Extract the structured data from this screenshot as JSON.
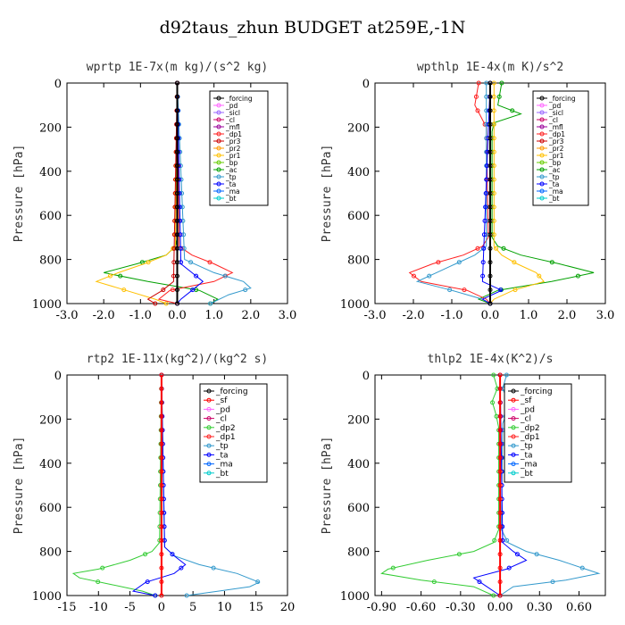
{
  "title": "d92taus_zhun  BUDGET at259E,-1N",
  "chart_data": [
    {
      "type": "line",
      "title": "wprtp  1E-7x(m kg)/(s^2 kg)",
      "ylabel": "Pressure [hPa]",
      "xlim": [
        -3.0,
        3.0
      ],
      "ylim": [
        1000,
        0
      ],
      "xticks": [
        "-3.0",
        "-2.0",
        "-1.0",
        "0.0",
        "1.0",
        "2.0",
        "3.0"
      ],
      "yticks": [
        "0",
        "200",
        "400",
        "600",
        "800",
        "1000"
      ],
      "legend": [
        "_forcing",
        "_pd",
        "_sicl",
        "_cl",
        "_mfl",
        "_dp1",
        "_pr3",
        "_pr2",
        "_pr1",
        "_bp",
        "_ac",
        "_tp",
        "_ta",
        "_ma",
        "_bt"
      ],
      "legend_position": "top-right",
      "series": [
        {
          "name": "_ac",
          "color": "#00a000",
          "y": [
            0,
            700,
            740,
            780,
            820,
            860,
            900,
            940,
            980,
            1000
          ],
          "x": [
            0,
            0,
            -0.05,
            -0.3,
            -1.1,
            -2.0,
            -0.8,
            0.6,
            1.1,
            0.9
          ]
        },
        {
          "name": "_pr1",
          "color": "#ffc000",
          "y": [
            0,
            740,
            780,
            820,
            860,
            900,
            940,
            980,
            1000
          ],
          "x": [
            0,
            -0.05,
            -0.3,
            -0.9,
            -1.6,
            -2.2,
            -1.4,
            -0.6,
            -0.3
          ]
        },
        {
          "name": "_dp1",
          "color": "#ff2020",
          "y": [
            0,
            740,
            780,
            820,
            860,
            900,
            940,
            980,
            1000
          ],
          "x": [
            0,
            0.05,
            0.4,
            1.0,
            1.5,
            1.0,
            -0.2,
            -0.5,
            0
          ]
        },
        {
          "name": "_bt",
          "color": "#3399cc",
          "y": [
            0,
            800,
            860,
            900,
            930,
            960,
            1000
          ],
          "x": [
            0,
            0.2,
            1.0,
            1.8,
            2.0,
            1.4,
            0.9
          ]
        },
        {
          "name": "_ta",
          "color": "#0000ff",
          "y": [
            0,
            820,
            860,
            900,
            940,
            980,
            1000
          ],
          "x": [
            0,
            0.1,
            0.4,
            0.7,
            0.4,
            0.1,
            0
          ]
        },
        {
          "name": "_pr3",
          "color": "#cc0000",
          "y": [
            0,
            900,
            940,
            980,
            1000
          ],
          "x": [
            0,
            -0.1,
            -0.4,
            -0.8,
            -0.6
          ]
        },
        {
          "name": "_forcing",
          "color": "#000000",
          "y": [
            0,
            1000
          ],
          "x": [
            0,
            0
          ]
        }
      ]
    },
    {
      "type": "line",
      "title": "wpthlp  1E-4x(m K)/s^2",
      "ylabel": "Pressure [hPa]",
      "xlim": [
        -3.0,
        3.0
      ],
      "ylim": [
        1000,
        0
      ],
      "xticks": [
        "-3.0",
        "-2.0",
        "-1.0",
        "0.0",
        "1.0",
        "2.0",
        "3.0"
      ],
      "yticks": [
        "0",
        "200",
        "400",
        "600",
        "800",
        "1000"
      ],
      "legend": [
        "_forcing",
        "_pd",
        "_sicl",
        "_cl",
        "_mfl",
        "_dp1",
        "_pr3",
        "_pr2",
        "_pr1",
        "_bp",
        "_ac",
        "_tp",
        "_ta",
        "_ma",
        "_bt"
      ],
      "legend_position": "top-right",
      "series": [
        {
          "name": "_ac",
          "color": "#00a000",
          "y": [
            0,
            100,
            140,
            180,
            220,
            700,
            740,
            780,
            820,
            860,
            900,
            940,
            980,
            1000
          ],
          "x": [
            0.3,
            0.2,
            0.8,
            0.1,
            0.05,
            0.05,
            0.2,
            0.8,
            1.8,
            2.7,
            1.6,
            0.2,
            -0.3,
            0
          ]
        },
        {
          "name": "_pr1",
          "color": "#ffc000",
          "y": [
            0,
            740,
            780,
            820,
            860,
            900,
            940,
            980,
            1000
          ],
          "x": [
            0.1,
            0.1,
            0.3,
            0.7,
            1.2,
            1.4,
            0.6,
            0.1,
            0
          ]
        },
        {
          "name": "_dp1",
          "color": "#ff2020",
          "y": [
            0,
            100,
            200,
            700,
            740,
            780,
            820,
            860,
            900,
            940,
            980,
            1000
          ],
          "x": [
            -0.3,
            -0.4,
            -0.1,
            -0.05,
            -0.2,
            -0.7,
            -1.5,
            -2.1,
            -1.8,
            -0.6,
            -0.1,
            0
          ]
        },
        {
          "name": "_bt",
          "color": "#3399cc",
          "y": [
            0,
            740,
            780,
            820,
            860,
            900,
            940,
            980,
            1000
          ],
          "x": [
            -0.1,
            -0.1,
            -0.4,
            -0.9,
            -1.4,
            -1.9,
            -1.0,
            -0.2,
            0
          ]
        },
        {
          "name": "_ta",
          "color": "#0000ff",
          "y": [
            0,
            900,
            940,
            980,
            1000
          ],
          "x": [
            0,
            -0.2,
            0.3,
            -0.2,
            0
          ]
        },
        {
          "name": "_forcing",
          "color": "#000000",
          "y": [
            0,
            1000
          ],
          "x": [
            0,
            0
          ]
        }
      ]
    },
    {
      "type": "line",
      "title": "rtp2  1E-11x(kg^2)/(kg^2 s)",
      "ylabel": "Pressure [hPa]",
      "xlim": [
        -15,
        20
      ],
      "ylim": [
        1000,
        0
      ],
      "xticks": [
        "-15",
        "-10",
        "-5",
        "0",
        "5",
        "10",
        "15",
        "20"
      ],
      "yticks": [
        "0",
        "200",
        "400",
        "600",
        "800",
        "1000"
      ],
      "legend": [
        "_forcing",
        "_sf",
        "_pd",
        "_cl",
        "_dp2",
        "_dp1",
        "_tp",
        "_ta",
        "_ma",
        "_bt"
      ],
      "legend_position": "top-right",
      "series": [
        {
          "name": "_dp1",
          "color": "#33cc33",
          "y": [
            0,
            760,
            800,
            840,
            880,
            900,
            920,
            950,
            980,
            1000
          ],
          "x": [
            0,
            -0.3,
            -1.5,
            -5.0,
            -10.0,
            -14.0,
            -13.0,
            -8.0,
            -3.0,
            -1.0
          ]
        },
        {
          "name": "_tp",
          "color": "#3399cc",
          "y": [
            0,
            780,
            820,
            860,
            900,
            940,
            960,
            980,
            1000
          ],
          "x": [
            0,
            0.5,
            2.0,
            6.0,
            12.0,
            15.5,
            14.0,
            9.0,
            4.0
          ]
        },
        {
          "name": "_ta",
          "color": "#0000ff",
          "y": [
            0,
            780,
            820,
            860,
            900,
            940,
            980,
            1000
          ],
          "x": [
            0,
            0.5,
            2.0,
            3.8,
            2.0,
            -2.5,
            -4.5,
            -1.0
          ]
        },
        {
          "name": "_forcing",
          "color": "#ff0000",
          "y": [
            0,
            1000
          ],
          "x": [
            0,
            0
          ]
        }
      ]
    },
    {
      "type": "line",
      "title": "thlp2  1E-4x(K^2)/s",
      "ylabel": "Pressure [hPa]",
      "xlim": [
        -0.95,
        0.8
      ],
      "ylim": [
        1000,
        0
      ],
      "xticks": [
        "-0.90",
        "-0.60",
        "-0.30",
        "0.00",
        "0.30",
        "0.60"
      ],
      "yticks": [
        "0",
        "200",
        "400",
        "600",
        "800",
        "1000"
      ],
      "legend": [
        "_forcing",
        "_sf",
        "_pd",
        "_cl",
        "_dp2",
        "_dp1",
        "_tp",
        "_ta",
        "_ma",
        "_bt"
      ],
      "legend_position": "top-right",
      "series": [
        {
          "name": "_dp1",
          "color": "#33cc33",
          "y": [
            0,
            60,
            120,
            180,
            240,
            700,
            760,
            800,
            840,
            880,
            900,
            930,
            960,
            1000
          ],
          "x": [
            -0.05,
            -0.02,
            -0.06,
            -0.03,
            -0.01,
            -0.01,
            -0.05,
            -0.2,
            -0.55,
            -0.85,
            -0.9,
            -0.6,
            -0.2,
            -0.05
          ]
        },
        {
          "name": "_tp",
          "color": "#3399cc",
          "y": [
            0,
            60,
            140,
            220,
            700,
            760,
            800,
            840,
            880,
            900,
            930,
            960,
            1000
          ],
          "x": [
            0.05,
            0.02,
            0.07,
            0.02,
            0.01,
            0.06,
            0.2,
            0.45,
            0.65,
            0.75,
            0.5,
            0.1,
            0
          ]
        },
        {
          "name": "_ta",
          "color": "#0000ff",
          "y": [
            0,
            760,
            800,
            840,
            880,
            920,
            960,
            1000
          ],
          "x": [
            0.0,
            0.02,
            0.1,
            0.2,
            0.05,
            -0.2,
            -0.1,
            0
          ]
        },
        {
          "name": "_forcing",
          "color": "#ff0000",
          "y": [
            0,
            1000
          ],
          "x": [
            0,
            0
          ]
        }
      ]
    }
  ]
}
